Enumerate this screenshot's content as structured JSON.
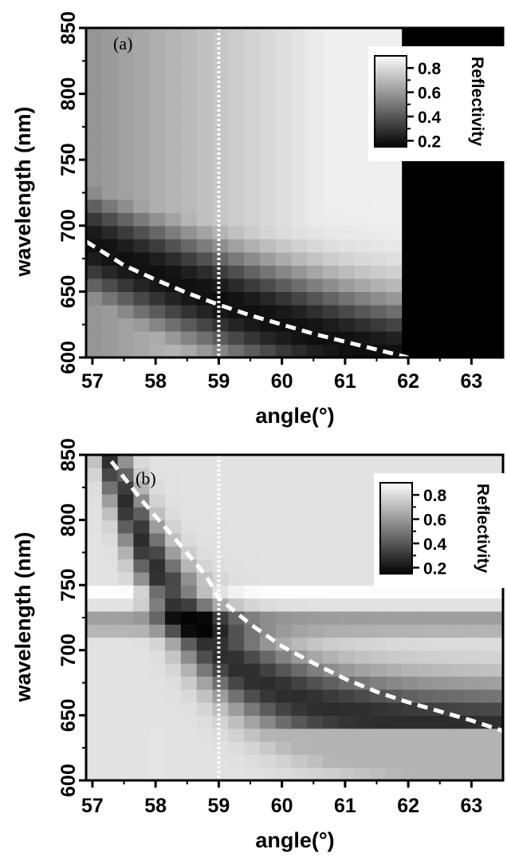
{
  "chart_data": [
    {
      "type": "heatmap",
      "panel_label": "(a)",
      "xlabel": "angle(°)",
      "ylabel": "wavelength (nm)",
      "xlim": [
        56.9,
        63.5
      ],
      "ylim": [
        600,
        850
      ],
      "x_ticks": [
        57,
        58,
        59,
        60,
        61,
        62,
        63
      ],
      "y_ticks": [
        600,
        650,
        700,
        750,
        800,
        850
      ],
      "grayscale": true,
      "colorbar": {
        "title": "Reflectivity",
        "ticks": [
          0.2,
          0.4,
          0.6,
          0.8
        ],
        "range": [
          0.15,
          0.9
        ],
        "placement": "top-right"
      },
      "cell_grid": {
        "x_step_deg": 0.25,
        "y_step_nm": 10
      },
      "resonance_curve": {
        "style": "dashed white",
        "points": [
          [
            56.9,
            688
          ],
          [
            57.5,
            670
          ],
          [
            58.0,
            659
          ],
          [
            58.5,
            649
          ],
          [
            59.0,
            640
          ],
          [
            59.5,
            632
          ],
          [
            60.0,
            625
          ],
          [
            60.5,
            618
          ],
          [
            61.0,
            612
          ],
          [
            61.5,
            606
          ],
          [
            62.0,
            600
          ]
        ]
      },
      "vertical_marker": {
        "style": "dotted white",
        "x": 59.0
      }
    },
    {
      "type": "heatmap",
      "panel_label": "(b)",
      "xlabel": "angle(°)",
      "ylabel": "wavelength (nm)",
      "xlim": [
        56.9,
        63.5
      ],
      "ylim": [
        600,
        850
      ],
      "x_ticks": [
        57,
        58,
        59,
        60,
        61,
        62,
        63
      ],
      "y_ticks": [
        600,
        650,
        700,
        750,
        800,
        850
      ],
      "grayscale": true,
      "colorbar": {
        "title": "Reflectivity",
        "ticks": [
          0.2,
          0.4,
          0.6,
          0.8
        ],
        "range": [
          0.15,
          0.9
        ],
        "placement": "top-right"
      },
      "cell_grid": {
        "x_step_deg": 0.25,
        "y_step_nm": 10
      },
      "horizontal_features": [
        {
          "wavelength": 721,
          "kind": "dark band"
        },
        {
          "wavelength": 743,
          "kind": "bright band"
        }
      ],
      "resonance_curve": {
        "style": "dashed white",
        "points": [
          [
            57.3,
            845
          ],
          [
            57.8,
            814
          ],
          [
            58.3,
            786
          ],
          [
            58.8,
            757
          ],
          [
            59.0,
            740
          ],
          [
            59.5,
            720
          ],
          [
            60.0,
            703
          ],
          [
            60.5,
            690
          ],
          [
            61.0,
            678
          ],
          [
            61.5,
            668
          ],
          [
            62.0,
            660
          ],
          [
            62.5,
            653
          ],
          [
            63.0,
            646
          ],
          [
            63.5,
            638
          ]
        ]
      },
      "vertical_marker": {
        "style": "dotted white",
        "x": 59.0
      }
    }
  ]
}
